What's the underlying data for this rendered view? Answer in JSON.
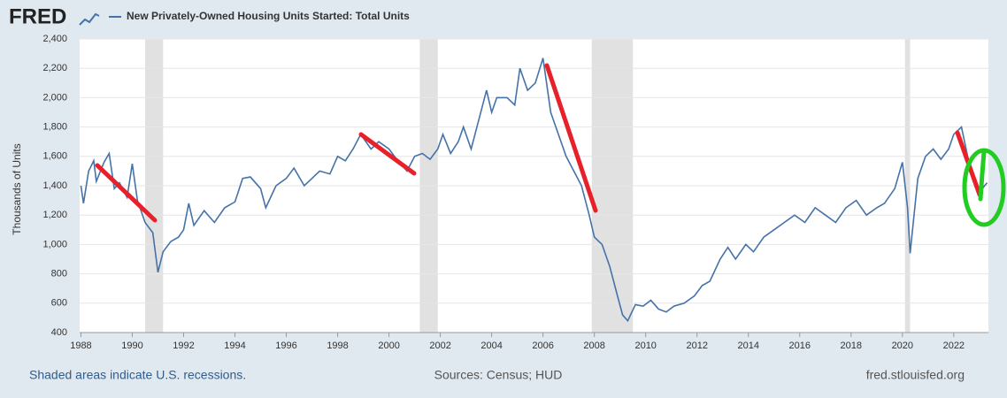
{
  "logo": "FRED",
  "chart_data": {
    "type": "line",
    "title": "New Privately-Owned Housing Units Started: Total Units",
    "ylabel": "Thousands of Units",
    "note": "Shaded areas indicate U.S. recessions.",
    "source": "Sources: Census; HUD",
    "site": "fred.stlouisfed.org",
    "xlim": [
      1987.95,
      2023.35
    ],
    "ylim": [
      400,
      2400
    ],
    "xticks": [
      1988,
      1990,
      1992,
      1994,
      1996,
      1998,
      2000,
      2002,
      2004,
      2006,
      2008,
      2010,
      2012,
      2014,
      2016,
      2018,
      2020,
      2022
    ],
    "yticks": [
      400,
      600,
      800,
      {
        "value": 1000,
        "label": "1,000"
      },
      {
        "value": 1200,
        "label": "1,200"
      },
      {
        "value": 1400,
        "label": "1,400"
      },
      {
        "value": 1600,
        "label": "1,600"
      },
      {
        "value": 1800,
        "label": "1,800"
      },
      {
        "value": 2000,
        "label": "2,000"
      },
      {
        "value": 2200,
        "label": "2,200"
      },
      {
        "value": 2400,
        "label": "2,400"
      }
    ],
    "grid": true,
    "recessions": [
      [
        1990.5,
        1991.2
      ],
      [
        2001.2,
        2001.9
      ],
      [
        2007.9,
        2009.5
      ],
      [
        2020.1,
        2020.3
      ]
    ],
    "series": [
      {
        "name": "New Privately-Owned Housing Units Started: Total Units",
        "color": "#4572a7",
        "x": [
          1988.0,
          1988.1,
          1988.3,
          1988.5,
          1988.6,
          1988.9,
          1989.1,
          1989.3,
          1989.5,
          1989.8,
          1990.0,
          1990.2,
          1990.5,
          1990.8,
          1991.0,
          1991.2,
          1991.5,
          1991.8,
          1992.0,
          1992.2,
          1992.4,
          1992.8,
          1993.2,
          1993.6,
          1994.0,
          1994.3,
          1994.6,
          1995.0,
          1995.2,
          1995.6,
          1996.0,
          1996.3,
          1996.7,
          1997.0,
          1997.3,
          1997.7,
          1998.0,
          1998.3,
          1998.6,
          1998.9,
          1999.3,
          1999.6,
          2000.0,
          2000.3,
          2000.7,
          2001.0,
          2001.3,
          2001.6,
          2001.9,
          2002.1,
          2002.4,
          2002.7,
          2002.9,
          2003.2,
          2003.5,
          2003.8,
          2004.0,
          2004.2,
          2004.6,
          2004.9,
          2005.1,
          2005.4,
          2005.7,
          2006.0,
          2006.3,
          2006.6,
          2006.9,
          2007.2,
          2007.5,
          2007.8,
          2008.0,
          2008.3,
          2008.6,
          2008.9,
          2009.1,
          2009.3,
          2009.6,
          2009.9,
          2010.2,
          2010.5,
          2010.8,
          2011.1,
          2011.5,
          2011.9,
          2012.2,
          2012.5,
          2012.9,
          2013.2,
          2013.5,
          2013.9,
          2014.2,
          2014.6,
          2015.0,
          2015.4,
          2015.8,
          2016.2,
          2016.6,
          2017.0,
          2017.4,
          2017.8,
          2018.2,
          2018.6,
          2019.0,
          2019.3,
          2019.7,
          2020.0,
          2020.2,
          2020.3,
          2020.6,
          2020.9,
          2021.2,
          2021.5,
          2021.8,
          2022.0,
          2022.3,
          2022.6,
          2022.9,
          2023.0,
          2023.2,
          2023.3
        ],
        "values": [
          1400,
          1280,
          1500,
          1570,
          1430,
          1560,
          1620,
          1380,
          1420,
          1320,
          1550,
          1300,
          1150,
          1080,
          810,
          950,
          1020,
          1050,
          1100,
          1280,
          1130,
          1230,
          1150,
          1250,
          1290,
          1450,
          1460,
          1380,
          1250,
          1400,
          1450,
          1520,
          1400,
          1450,
          1500,
          1480,
          1600,
          1570,
          1650,
          1750,
          1650,
          1700,
          1650,
          1580,
          1500,
          1600,
          1620,
          1580,
          1650,
          1750,
          1620,
          1700,
          1800,
          1650,
          1850,
          2050,
          1900,
          2000,
          2000,
          1950,
          2200,
          2050,
          2100,
          2270,
          1900,
          1750,
          1600,
          1500,
          1400,
          1200,
          1050,
          1000,
          850,
          650,
          520,
          480,
          590,
          580,
          620,
          560,
          540,
          580,
          600,
          650,
          720,
          750,
          900,
          980,
          900,
          1000,
          950,
          1050,
          1100,
          1150,
          1200,
          1150,
          1250,
          1200,
          1150,
          1250,
          1300,
          1200,
          1250,
          1280,
          1380,
          1560,
          1250,
          940,
          1450,
          1600,
          1650,
          1580,
          1650,
          1750,
          1800,
          1550,
          1420,
          1350,
          1400,
          1420
        ]
      }
    ]
  }
}
